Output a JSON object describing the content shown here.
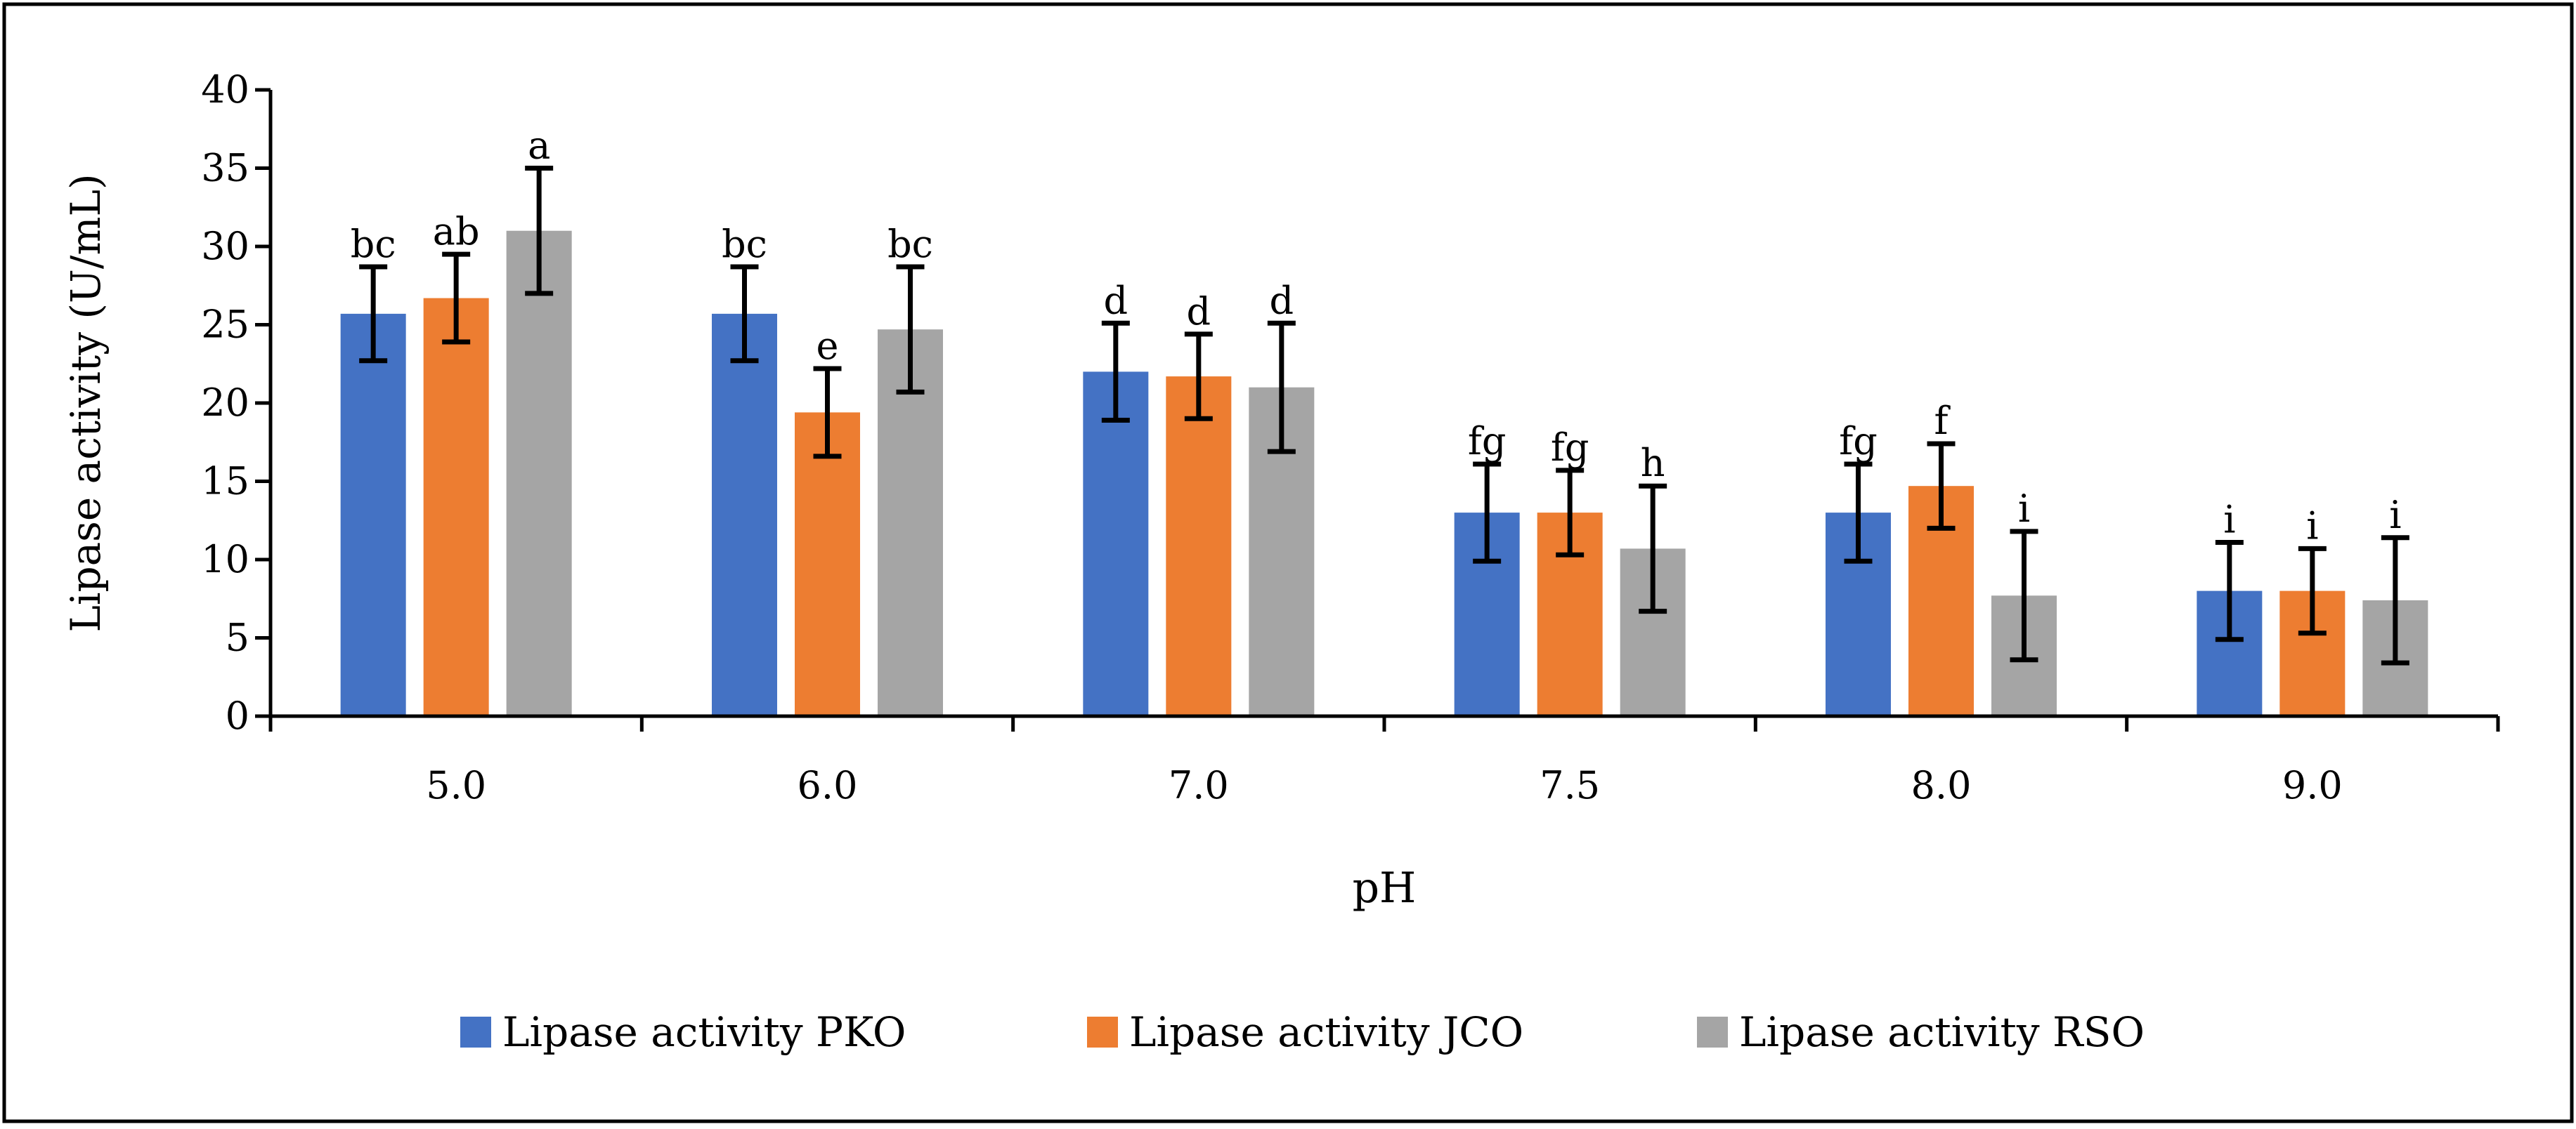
{
  "chart_data": {
    "type": "bar",
    "title": "",
    "xlabel": "pH",
    "ylabel": "Lipase activity (U/mL)",
    "ylim": [
      0,
      40
    ],
    "yticks": [
      "0",
      "5",
      "10",
      "15",
      "20",
      "25",
      "30",
      "35",
      "40"
    ],
    "categories": [
      "5.0",
      "6.0",
      "7.0",
      "7.5",
      "8.0",
      "9.0"
    ],
    "grid": false,
    "legend_position": "bottom",
    "series": [
      {
        "name": "Lipase activity PKO",
        "color": "#4472C4",
        "values": [
          25.7,
          25.7,
          22.0,
          13.0,
          13.0,
          8.0
        ],
        "errors": [
          3.0,
          3.0,
          3.1,
          3.1,
          3.1,
          3.1
        ],
        "letters": [
          "bc",
          "bc",
          "d",
          "fg",
          "fg",
          "i"
        ]
      },
      {
        "name": "Lipase activity JCO",
        "color": "#ED7D31",
        "values": [
          26.7,
          19.4,
          21.7,
          13.0,
          14.7,
          8.0
        ],
        "errors": [
          2.8,
          2.8,
          2.7,
          2.7,
          2.7,
          2.7
        ],
        "letters": [
          "ab",
          "e",
          "d",
          "fg",
          "f",
          "i"
        ]
      },
      {
        "name": "Lipase activity RSO",
        "color": "#A5A5A5",
        "values": [
          31.0,
          24.7,
          21.0,
          10.7,
          7.7,
          7.4
        ],
        "errors": [
          4.0,
          4.0,
          4.1,
          4.0,
          4.1,
          4.0
        ],
        "letters": [
          "a",
          "bc",
          "d",
          "h",
          "i",
          "i"
        ]
      }
    ]
  }
}
